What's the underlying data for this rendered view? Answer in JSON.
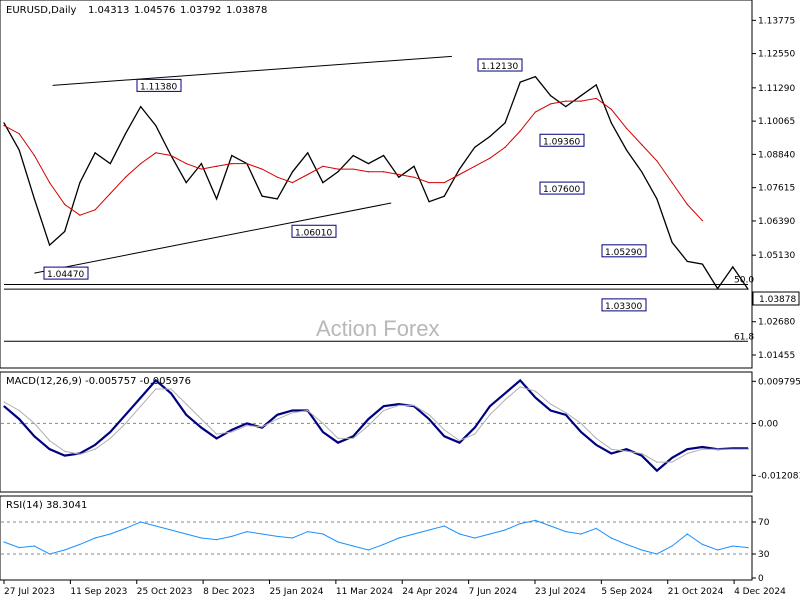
{
  "chart_data": [
    {
      "type": "line",
      "panel": "price",
      "title": "EURUSD,Daily",
      "ohlc": {
        "open": "1.04313",
        "high": "1.04576",
        "low": "1.03792",
        "close": "1.03878"
      },
      "watermark": "Action Forex",
      "current_price_label": "1.03878",
      "fib_labels": [
        {
          "text": "50.0",
          "y": 1.0405
        },
        {
          "text": "61.8",
          "y": 1.0196
        }
      ],
      "ylim": [
        1.0105,
        1.1445
      ],
      "y_ticks": [
        {
          "v": 1.01455,
          "t": "1.01455"
        },
        {
          "v": 1.0268,
          "t": "1.02680"
        },
        {
          "v": 1.0513,
          "t": "1.05130"
        },
        {
          "v": 1.0639,
          "t": "1.06390"
        },
        {
          "v": 1.07615,
          "t": "1.07615"
        },
        {
          "v": 1.0884,
          "t": "1.08840"
        },
        {
          "v": 1.10065,
          "t": "1.10065"
        },
        {
          "v": 1.1129,
          "t": "1.11290"
        },
        {
          "v": 1.1255,
          "t": "1.12550"
        },
        {
          "v": 1.13775,
          "t": "1.13775"
        }
      ],
      "annotations": [
        {
          "text": "1.11380",
          "v": 1.1138,
          "anchor_idx": 5
        },
        {
          "text": "1.04470",
          "v": 1.0447,
          "anchor_idx": 2
        },
        {
          "text": "1.06010",
          "v": 1.0601,
          "anchor_idx": 10
        },
        {
          "text": "1.12130",
          "v": 1.1213,
          "anchor_idx": 16
        },
        {
          "text": "1.09360",
          "v": 1.0936,
          "anchor_idx": 18
        },
        {
          "text": "1.07600",
          "v": 1.076,
          "anchor_idx": 18
        },
        {
          "text": "1.05290",
          "v": 1.0529,
          "anchor_idx": 20
        },
        {
          "text": "1.03300",
          "v": 1.033,
          "anchor_idx": 20
        }
      ],
      "x_labels": [
        "27 Jul 2023",
        "11 Sep 2023",
        "25 Oct 2023",
        "8 Dec 2023",
        "25 Jan 2024",
        "11 Mar 2024",
        "24 Apr 2024",
        "7 Jun 2024",
        "23 Jul 2024",
        "5 Sep 2024",
        "21 Oct 2024",
        "4 Dec 2024"
      ],
      "series": [
        {
          "color": "#000000",
          "values": [
            1.1,
            1.09,
            1.072,
            1.055,
            1.06,
            1.078,
            1.089,
            1.085,
            1.096,
            1.106,
            1.099,
            1.088,
            1.078,
            1.085,
            1.072,
            1.088,
            1.085,
            1.073,
            1.072,
            1.082,
            1.089,
            1.078,
            1.082,
            1.088,
            1.085,
            1.088,
            1.08,
            1.084,
            1.071,
            1.073,
            1.083,
            1.091,
            1.095,
            1.1,
            1.115,
            1.117,
            1.11,
            1.106,
            1.11,
            1.114,
            1.1,
            1.09,
            1.082,
            1.072,
            1.056,
            1.049,
            1.048,
            1.039,
            1.047,
            1.0388
          ]
        },
        {
          "name": "",
          "color": "#d40000",
          "values": [
            1.099,
            1.096,
            1.088,
            1.078,
            1.07,
            1.066,
            1.068,
            1.074,
            1.08,
            1.085,
            1.089,
            1.088,
            1.085,
            1.083,
            1.084,
            1.085,
            1.085,
            1.083,
            1.08,
            1.078,
            1.081,
            1.084,
            1.083,
            1.083,
            1.082,
            1.082,
            1.081,
            1.08,
            1.078,
            1.078,
            1.081,
            1.084,
            1.087,
            1.091,
            1.097,
            1.104,
            1.107,
            1.108,
            1.108,
            1.109,
            1.105,
            1.098,
            1.092,
            1.086,
            1.078,
            1.07,
            1.064,
            null,
            null,
            null
          ]
        }
      ],
      "trendlines": [
        {
          "from": [
            3.2,
            1.1138
          ],
          "to": [
            29.5,
            1.1245
          ]
        },
        {
          "from": [
            2.0,
            1.0447
          ],
          "to": [
            25.5,
            1.0705
          ]
        },
        {
          "from": [
            0.0,
            1.0405
          ],
          "to": [
            49.0,
            1.0405
          ]
        },
        {
          "from": [
            0.0,
            1.0388
          ],
          "to": [
            49.0,
            1.0388
          ]
        },
        {
          "from": [
            0.0,
            1.0196
          ],
          "to": [
            49.0,
            1.0196
          ]
        }
      ]
    },
    {
      "type": "line",
      "panel": "macd",
      "title": "MACD(12,26,9) -0.005757 -0.005976",
      "ylim": [
        -0.0155,
        0.0115
      ],
      "y_ticks": [
        {
          "v": 0.009795,
          "t": "0.009795"
        },
        {
          "v": 0.0,
          "t": "0.00"
        },
        {
          "v": -0.012081,
          "t": "-0.012081"
        }
      ],
      "series": [
        {
          "color": "#000080",
          "values": [
            0.004,
            0.001,
            -0.003,
            -0.006,
            -0.0075,
            -0.007,
            -0.005,
            -0.002,
            0.002,
            0.006,
            0.01,
            0.007,
            0.002,
            -0.001,
            -0.0035,
            -0.0015,
            0.0,
            -0.001,
            0.002,
            0.003,
            0.003,
            -0.002,
            -0.0045,
            -0.003,
            0.001,
            0.004,
            0.0045,
            0.004,
            0.001,
            -0.003,
            -0.0045,
            -0.001,
            0.004,
            0.007,
            0.01,
            0.006,
            0.003,
            0.002,
            -0.002,
            -0.005,
            -0.007,
            -0.006,
            -0.0075,
            -0.011,
            -0.008,
            -0.006,
            -0.0055,
            -0.006,
            -0.0058,
            -0.0058
          ]
        },
        {
          "color": "#b0b0b0",
          "values": [
            0.005,
            0.003,
            0.0,
            -0.004,
            -0.0065,
            -0.0072,
            -0.006,
            -0.0035,
            0.0,
            0.004,
            0.008,
            0.008,
            0.0045,
            0.001,
            -0.0025,
            -0.002,
            -0.0005,
            -0.0008,
            0.001,
            0.0025,
            0.003,
            0.0,
            -0.0035,
            -0.0035,
            -0.0005,
            0.003,
            0.0042,
            0.0042,
            0.002,
            -0.0015,
            -0.004,
            -0.0025,
            0.002,
            0.0055,
            0.0085,
            0.0075,
            0.0045,
            0.0025,
            0.0,
            -0.0035,
            -0.006,
            -0.0065,
            -0.007,
            -0.009,
            -0.009,
            -0.007,
            -0.006,
            -0.006,
            -0.006,
            -0.006
          ]
        }
      ]
    },
    {
      "type": "line",
      "panel": "rsi",
      "title": "RSI(14) 38.3041",
      "ylim": [
        0,
        100
      ],
      "y_ticks": [
        {
          "v": 70,
          "t": "70"
        },
        {
          "v": 30,
          "t": "30"
        },
        {
          "v": 0,
          "t": "0"
        }
      ],
      "levels": [
        70,
        30
      ],
      "series": [
        {
          "color": "#1e90ff",
          "values": [
            45,
            38,
            40,
            30,
            35,
            42,
            50,
            55,
            62,
            70,
            65,
            60,
            55,
            50,
            48,
            52,
            58,
            55,
            52,
            50,
            58,
            55,
            45,
            40,
            35,
            42,
            50,
            55,
            60,
            65,
            55,
            50,
            55,
            60,
            68,
            72,
            65,
            58,
            55,
            62,
            50,
            42,
            35,
            30,
            40,
            55,
            42,
            35,
            40,
            38
          ]
        }
      ]
    }
  ]
}
